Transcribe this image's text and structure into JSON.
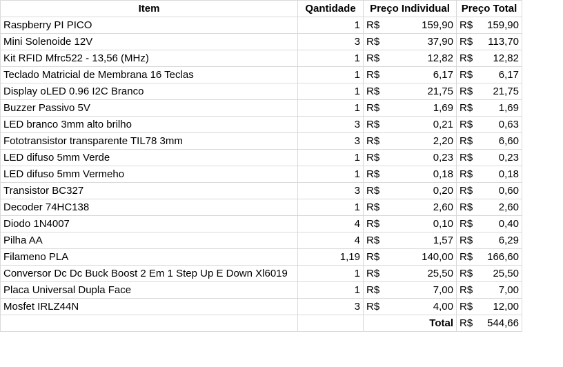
{
  "headers": {
    "item": "Item",
    "quantity": "Qantidade",
    "unit_price": "Preço Individual",
    "total_price": "Preço Total"
  },
  "currency": "R$",
  "rows": [
    {
      "item": "Raspberry PI PICO",
      "qty": "1",
      "unit": "159,90",
      "total": "159,90"
    },
    {
      "item": "Mini Solenoide 12V",
      "qty": "3",
      "unit": "37,90",
      "total": "113,70"
    },
    {
      "item": " Kit RFID Mfrc522 - 13,56 (MHz)",
      "qty": "1",
      "unit": "12,82",
      "total": "12,82"
    },
    {
      "item": " Teclado Matricial de Membrana 16 Teclas",
      "qty": "1",
      "unit": "6,17",
      "total": "6,17"
    },
    {
      "item": "Display oLED 0.96 I2C Branco",
      "qty": "1",
      "unit": "21,75",
      "total": "21,75"
    },
    {
      "item": "Buzzer Passivo 5V",
      "qty": "1",
      "unit": "1,69",
      "total": "1,69"
    },
    {
      "item": "LED branco 3mm alto brilho",
      "qty": "3",
      "unit": "0,21",
      "total": "0,63"
    },
    {
      "item": "Fototransistor transparente TIL78 3mm",
      "qty": "3",
      "unit": "2,20",
      "total": "6,60"
    },
    {
      "item": "LED difuso 5mm Verde",
      "qty": "1",
      "unit": "0,23",
      "total": "0,23"
    },
    {
      "item": "LED difuso 5mm Vermeho",
      "qty": "1",
      "unit": "0,18",
      "total": "0,18"
    },
    {
      "item": "Transistor BC327",
      "qty": "3",
      "unit": "0,20",
      "total": "0,60"
    },
    {
      "item": "Decoder 74HC138",
      "qty": "1",
      "unit": "2,60",
      "total": "2,60"
    },
    {
      "item": "Diodo 1N4007",
      "qty": "4",
      "unit": "0,10",
      "total": "0,40"
    },
    {
      "item": "Pilha AA",
      "qty": "4",
      "unit": "1,57",
      "total": "6,29"
    },
    {
      "item": "Filameno PLA",
      "qty": "1,19",
      "unit": "140,00",
      "total": "166,60"
    },
    {
      "item": "Conversor Dc Dc Buck Boost 2 Em 1 Step Up E Down Xl6019",
      "qty": "1",
      "unit": "25,50",
      "total": "25,50"
    },
    {
      "item": "Placa Universal Dupla Face",
      "qty": "1",
      "unit": "7,00",
      "total": "7,00"
    },
    {
      "item": "Mosfet IRLZ44N",
      "qty": "3",
      "unit": "4,00",
      "total": "12,00"
    }
  ],
  "total_row": {
    "label": "Total",
    "value": "544,66"
  }
}
